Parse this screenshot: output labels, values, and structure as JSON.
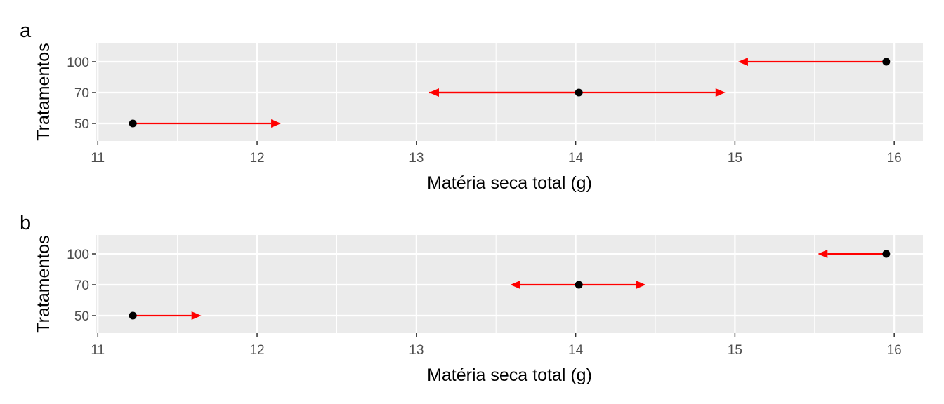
{
  "chart_data": [
    {
      "type": "interval",
      "tag": "a",
      "xlabel": "Matéria seca total (g)",
      "ylabel": "Tratamentos",
      "xlim": [
        10.99,
        16.18
      ],
      "x_ticks": [
        "11",
        "12",
        "13",
        "14",
        "15",
        "16"
      ],
      "categories": [
        "50",
        "70",
        "100"
      ],
      "points": [
        11.22,
        14.02,
        15.95
      ],
      "intervals": [
        {
          "category": "50",
          "from": 11.22,
          "to": 12.15
        },
        {
          "category": "70",
          "from": 13.08,
          "to": 14.94
        },
        {
          "category": "70",
          "from": 14.02,
          "to": 13.08
        },
        {
          "category": "100",
          "from": 15.95,
          "to": 15.02
        }
      ],
      "colors": {
        "arrow": "#ff0000",
        "point": "#000000",
        "panel": "#ebebeb"
      },
      "grid": true
    },
    {
      "type": "interval",
      "tag": "b",
      "xlabel": "Matéria seca total (g)",
      "ylabel": "Tratamentos",
      "xlim": [
        10.99,
        16.18
      ],
      "x_ticks": [
        "11",
        "12",
        "13",
        "14",
        "15",
        "16"
      ],
      "categories": [
        "50",
        "70",
        "100"
      ],
      "points": [
        11.22,
        14.02,
        15.95
      ],
      "intervals": [
        {
          "category": "50",
          "from": 11.22,
          "to": 11.65
        },
        {
          "category": "70",
          "from": 14.02,
          "to": 14.44
        },
        {
          "category": "70",
          "from": 14.02,
          "to": 13.59
        },
        {
          "category": "100",
          "from": 15.95,
          "to": 15.52
        }
      ],
      "colors": {
        "arrow": "#ff0000",
        "point": "#000000",
        "panel": "#ebebeb"
      },
      "grid": true
    }
  ]
}
